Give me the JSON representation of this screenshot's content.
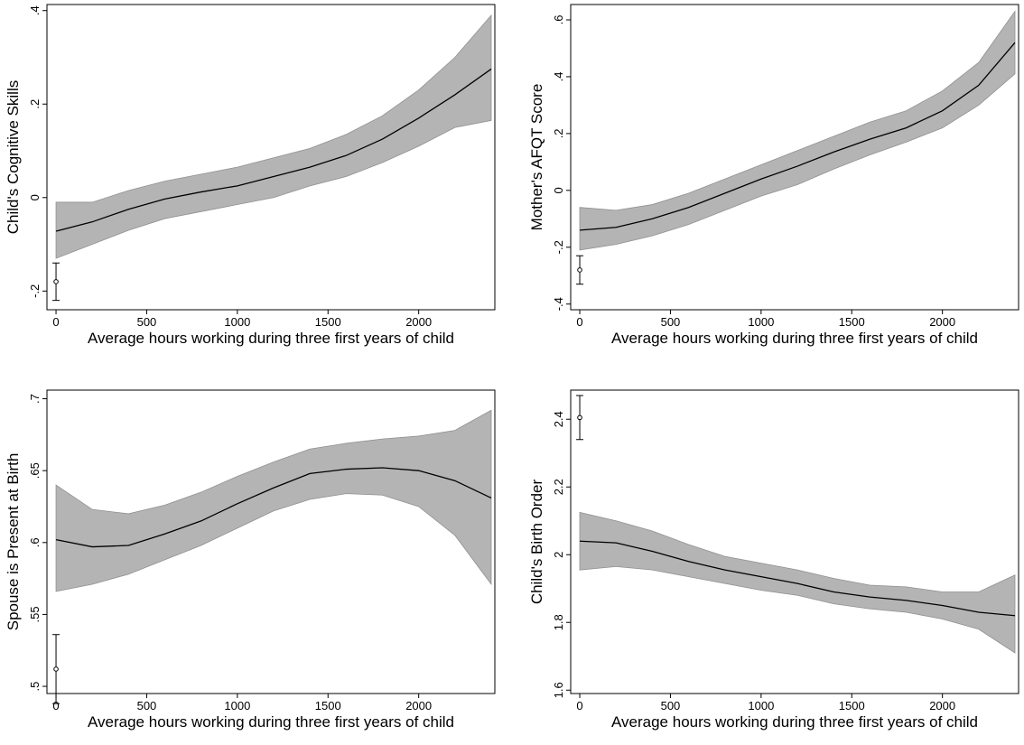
{
  "chart_data": [
    {
      "type": "line",
      "ylabel": "Child's Cognitive Skills",
      "xlabel": "Average hours working during three first years of child",
      "x": [
        0,
        200,
        400,
        600,
        800,
        1000,
        1200,
        1400,
        1600,
        1800,
        2000,
        2200,
        2400
      ],
      "values": [
        -0.072,
        -0.052,
        -0.025,
        -0.003,
        0.012,
        0.025,
        0.045,
        0.065,
        0.09,
        0.125,
        0.17,
        0.22,
        0.275
      ],
      "lower": [
        -0.13,
        -0.1,
        -0.07,
        -0.045,
        -0.03,
        -0.015,
        0.0,
        0.025,
        0.045,
        0.075,
        0.11,
        0.15,
        0.165
      ],
      "upper": [
        -0.01,
        -0.01,
        0.015,
        0.035,
        0.05,
        0.065,
        0.085,
        0.105,
        0.135,
        0.175,
        0.23,
        0.3,
        0.39
      ],
      "point": {
        "x": 0,
        "y": -0.18,
        "error": 0.04
      },
      "color": "#000000",
      "band_color": "#b4b4b4",
      "xlim": [
        -50,
        2420
      ],
      "xticks": [
        0,
        500,
        1000,
        1500,
        2000
      ],
      "ylim": [
        -0.24,
        0.413
      ],
      "yticks": [
        {
          "value": -0.2,
          "label": "-.2"
        },
        0,
        {
          "value": 0.2,
          "label": ".2"
        },
        {
          "value": 0.4,
          "label": ".4"
        }
      ]
    },
    {
      "type": "line",
      "ylabel": "Mother's AFQT Score",
      "xlabel": "Average hours working during three first years of child",
      "x": [
        0,
        200,
        400,
        600,
        800,
        1000,
        1200,
        1400,
        1600,
        1800,
        2000,
        2200,
        2400
      ],
      "values": [
        -0.14,
        -0.13,
        -0.1,
        -0.06,
        -0.01,
        0.04,
        0.085,
        0.135,
        0.18,
        0.22,
        0.28,
        0.37,
        0.52
      ],
      "lower": [
        -0.21,
        -0.19,
        -0.16,
        -0.12,
        -0.07,
        -0.02,
        0.02,
        0.075,
        0.125,
        0.17,
        0.22,
        0.3,
        0.41
      ],
      "upper": [
        -0.06,
        -0.07,
        -0.05,
        -0.01,
        0.04,
        0.09,
        0.14,
        0.19,
        0.24,
        0.28,
        0.35,
        0.45,
        0.63
      ],
      "point": {
        "x": 0,
        "y": -0.28,
        "error": 0.05
      },
      "color": "#000000",
      "band_color": "#b4b4b4",
      "xlim": [
        -50,
        2420
      ],
      "xticks": [
        0,
        500,
        1000,
        1500,
        2000
      ],
      "ylim": [
        -0.42,
        0.654
      ],
      "yticks": [
        {
          "value": -0.4,
          "label": "-.4"
        },
        {
          "value": -0.2,
          "label": "-.2"
        },
        0,
        {
          "value": 0.2,
          "label": ".2"
        },
        {
          "value": 0.4,
          "label": ".4"
        },
        {
          "value": 0.6,
          "label": ".6"
        }
      ]
    },
    {
      "type": "line",
      "ylabel": "Spouse is Present at Birth",
      "xlabel": "Average hours working during three first years of child",
      "x": [
        0,
        200,
        400,
        600,
        800,
        1000,
        1200,
        1400,
        1600,
        1800,
        2000,
        2200,
        2400
      ],
      "values": [
        0.602,
        0.597,
        0.598,
        0.606,
        0.615,
        0.627,
        0.638,
        0.648,
        0.651,
        0.652,
        0.65,
        0.643,
        0.631
      ],
      "lower": [
        0.566,
        0.571,
        0.578,
        0.588,
        0.598,
        0.61,
        0.622,
        0.63,
        0.634,
        0.633,
        0.625,
        0.605,
        0.571
      ],
      "upper": [
        0.64,
        0.623,
        0.62,
        0.626,
        0.635,
        0.646,
        0.656,
        0.665,
        0.669,
        0.672,
        0.674,
        0.678,
        0.692
      ],
      "point": {
        "x": 0,
        "y": 0.512,
        "error": 0.024
      },
      "color": "#000000",
      "band_color": "#b4b4b4",
      "xlim": [
        -50,
        2420
      ],
      "xticks": [
        0,
        500,
        1000,
        1500,
        2000
      ],
      "ylim": [
        0.495,
        0.706
      ],
      "yticks": [
        {
          "value": 0.5,
          "label": ".5"
        },
        {
          "value": 0.55,
          "label": ".55"
        },
        {
          "value": 0.6,
          "label": ".6"
        },
        {
          "value": 0.65,
          "label": ".65"
        },
        {
          "value": 0.7,
          "label": ".7"
        }
      ]
    },
    {
      "type": "line",
      "ylabel": "Child's Birth Order",
      "xlabel": "Average hours working during three first years of child",
      "x": [
        0,
        200,
        400,
        600,
        800,
        1000,
        1200,
        1400,
        1600,
        1800,
        2000,
        2200,
        2400
      ],
      "values": [
        2.04,
        2.035,
        2.01,
        1.98,
        1.955,
        1.935,
        1.915,
        1.89,
        1.875,
        1.865,
        1.85,
        1.83,
        1.82
      ],
      "lower": [
        1.955,
        1.965,
        1.955,
        1.935,
        1.915,
        1.895,
        1.88,
        1.855,
        1.84,
        1.83,
        1.81,
        1.78,
        1.71
      ],
      "upper": [
        2.125,
        2.1,
        2.07,
        2.03,
        1.995,
        1.975,
        1.955,
        1.93,
        1.91,
        1.905,
        1.89,
        1.89,
        1.94
      ],
      "point": {
        "x": 0,
        "y": 2.405,
        "error": 0.065
      },
      "color": "#000000",
      "band_color": "#b4b4b4",
      "xlim": [
        -50,
        2420
      ],
      "xticks": [
        0,
        500,
        1000,
        1500,
        2000
      ],
      "ylim": [
        1.59,
        2.486
      ],
      "yticks": [
        1.6,
        1.8,
        2,
        2.2,
        2.4
      ]
    }
  ]
}
